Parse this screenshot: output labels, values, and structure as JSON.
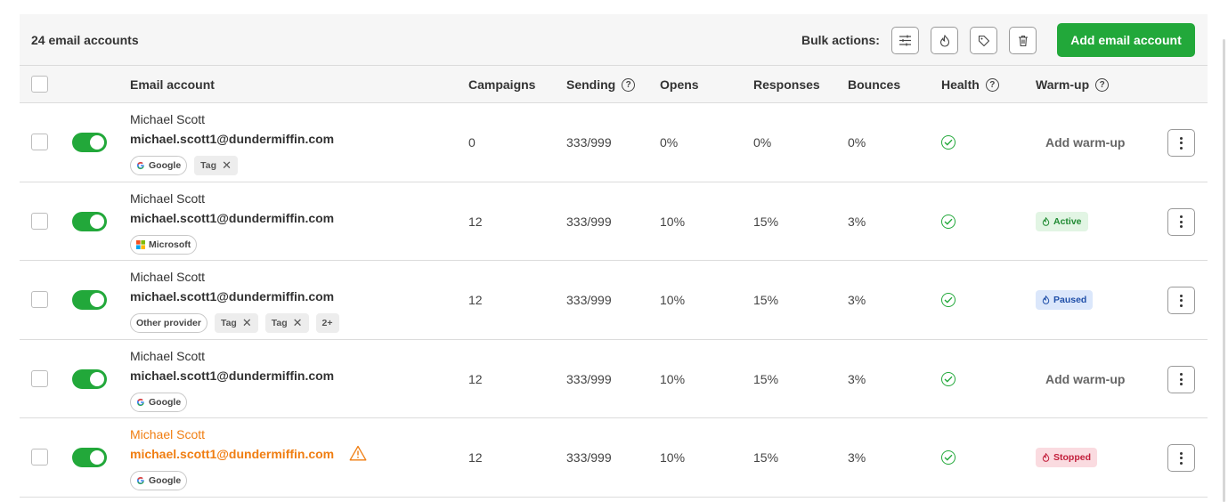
{
  "header": {
    "count_label": "24 email accounts",
    "bulk_label": "Bulk actions:",
    "add_button": "Add email account"
  },
  "columns": {
    "email_account": "Email account",
    "campaigns": "Campaigns",
    "sending": "Sending",
    "opens": "Opens",
    "responses": "Responses",
    "bounces": "Bounces",
    "health": "Health",
    "warmup": "Warm-up",
    "help_glyph": "?"
  },
  "colors": {
    "accent": "#22a83a",
    "warning": "#f07e12",
    "active": "#1f8a32",
    "paused": "#1f4fa8",
    "stopped": "#c21d3a"
  },
  "icons": [
    "filter-sliders-icon",
    "flame-icon",
    "tag-icon",
    "trash-icon",
    "help-icon",
    "check-circle-icon",
    "warning-icon",
    "kebab-icon"
  ],
  "rows": [
    {
      "name": "Michael Scott",
      "email": "michael.scott1@dundermiffin.com",
      "provider": "Google",
      "tags": [
        "Tag"
      ],
      "more_tags": "",
      "campaigns": "0",
      "sending": "333/999",
      "opens": "0%",
      "responses": "0%",
      "bounces": "0%",
      "warmup": "Add warm-up",
      "enabled": true,
      "warning": false
    },
    {
      "name": "Michael Scott",
      "email": "michael.scott1@dundermiffin.com",
      "provider": "Microsoft",
      "tags": [],
      "more_tags": "",
      "campaigns": "12",
      "sending": "333/999",
      "opens": "10%",
      "responses": "15%",
      "bounces": "3%",
      "warmup": "Active",
      "enabled": true,
      "warning": false
    },
    {
      "name": "Michael Scott",
      "email": "michael.scott1@dundermiffin.com",
      "provider": "Other provider",
      "tags": [
        "Tag",
        "Tag"
      ],
      "more_tags": "2+",
      "campaigns": "12",
      "sending": "333/999",
      "opens": "10%",
      "responses": "15%",
      "bounces": "3%",
      "warmup": "Paused",
      "enabled": true,
      "warning": false
    },
    {
      "name": "Michael Scott",
      "email": "michael.scott1@dundermiffin.com",
      "provider": "Google",
      "tags": [],
      "more_tags": "",
      "campaigns": "12",
      "sending": "333/999",
      "opens": "10%",
      "responses": "15%",
      "bounces": "3%",
      "warmup": "Add warm-up",
      "enabled": true,
      "warning": false
    },
    {
      "name": "Michael Scott",
      "email": "michael.scott1@dundermiffin.com",
      "provider": "Google",
      "tags": [],
      "more_tags": "",
      "campaigns": "12",
      "sending": "333/999",
      "opens": "10%",
      "responses": "15%",
      "bounces": "3%",
      "warmup": "Stopped",
      "enabled": true,
      "warning": true
    }
  ]
}
